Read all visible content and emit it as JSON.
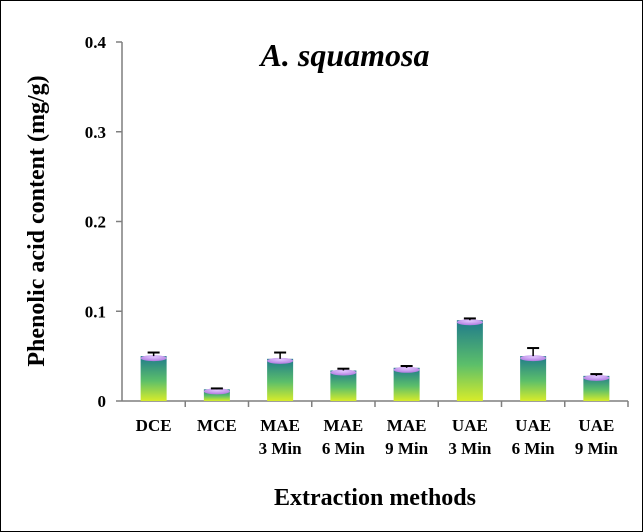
{
  "chart_data": {
    "type": "bar",
    "title": "A. squamosa",
    "xlabel": "Extraction methods",
    "ylabel": "Phenolic acid content (mg/g)",
    "ylim": [
      0,
      0.4
    ],
    "yticks": [
      "0",
      "0.1",
      "0.2",
      "0.3",
      "0.4"
    ],
    "ytick_values": [
      0,
      0.1,
      0.2,
      0.3,
      0.4
    ],
    "categories": [
      [
        "DCE",
        ""
      ],
      [
        "MCE",
        ""
      ],
      [
        "MAE",
        "3 Min"
      ],
      [
        "MAE",
        "6 Min"
      ],
      [
        "MAE",
        "9 Min"
      ],
      [
        "UAE",
        "3 Min"
      ],
      [
        "UAE",
        "6 Min"
      ],
      [
        "UAE",
        "9 Min"
      ]
    ],
    "values": [
      0.05,
      0.013,
      0.047,
      0.034,
      0.037,
      0.09,
      0.05,
      0.028
    ],
    "errors": [
      0.004,
      0.001,
      0.007,
      0.002,
      0.002,
      0.002,
      0.009,
      0.002
    ],
    "grid": false,
    "legend": "none",
    "colors": {
      "bar_top": "#1f7a8c",
      "bar_mid": "#5cbf6a",
      "bar_bottom": "#d7ec2a",
      "bar_cap": "#b07ae0"
    }
  }
}
